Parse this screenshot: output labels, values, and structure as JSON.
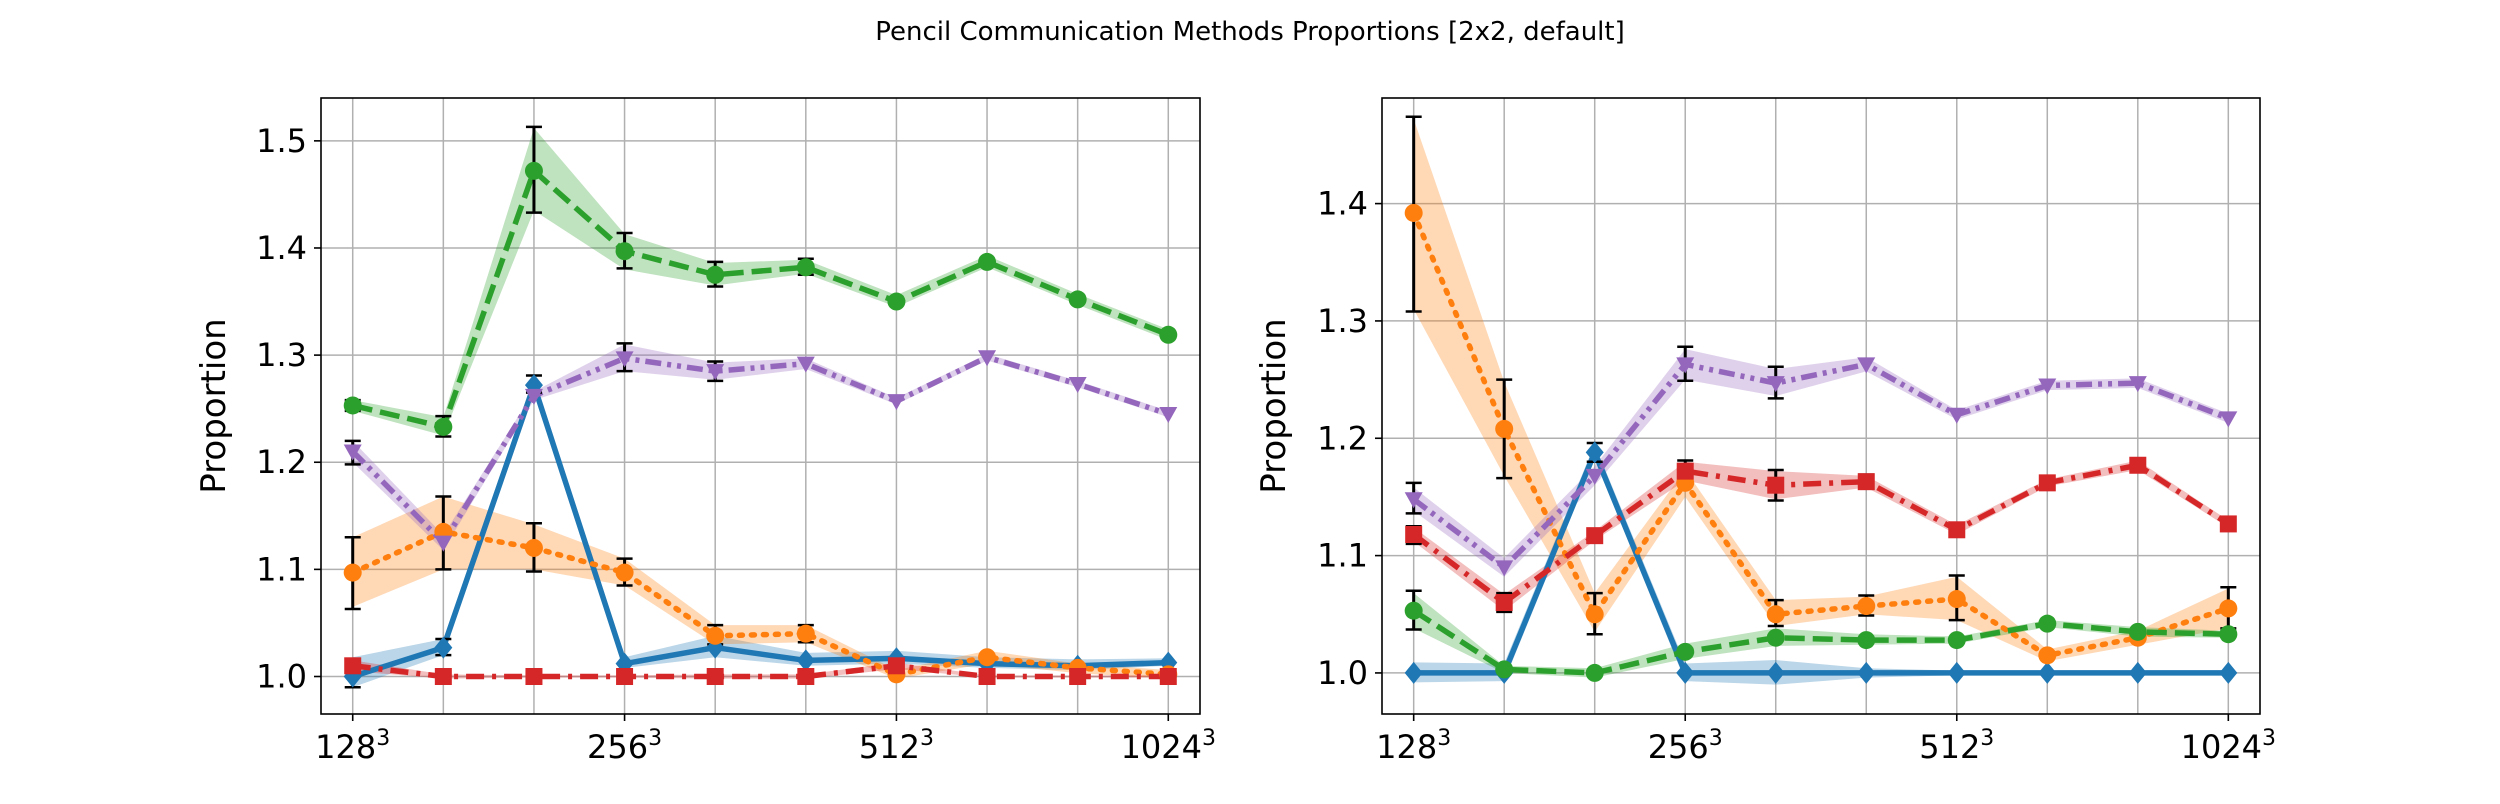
{
  "suptitle": "Pencil Communication Methods Proportions [2x2, default]",
  "chart_data": [
    {
      "type": "line",
      "title": "",
      "xlabel": "",
      "ylabel": "Proportion",
      "x": [
        0,
        1,
        2,
        3,
        4,
        5,
        6,
        7,
        8,
        9
      ],
      "xticks": [
        {
          "x": 0,
          "base": "128",
          "exp": "3"
        },
        {
          "x": 3,
          "base": "256",
          "exp": "3"
        },
        {
          "x": 6,
          "base": "512",
          "exp": "3"
        },
        {
          "x": 9,
          "base": "1024",
          "exp": "3"
        }
      ],
      "xlim": [
        -0.35,
        9.35
      ],
      "ylim": [
        0.965,
        1.54
      ],
      "yticks": [
        1.0,
        1.1,
        1.2,
        1.3,
        1.4,
        1.5
      ],
      "ytick_labels": [
        "1.0",
        "1.1",
        "1.2",
        "1.3",
        "1.4",
        "1.5"
      ],
      "grid": true,
      "series": [
        {
          "color": "#1f77b4",
          "marker": "diamond",
          "dash": "solid",
          "values": [
            1.0,
            1.027,
            1.272,
            1.012,
            1.027,
            1.015,
            1.017,
            1.012,
            1.01,
            1.013
          ],
          "lower": [
            0.99,
            1.02,
            1.265,
            1.008,
            1.018,
            1.01,
            1.012,
            1.008,
            1.006,
            1.01
          ],
          "upper": [
            1.018,
            1.035,
            1.279,
            1.018,
            1.038,
            1.022,
            1.024,
            1.018,
            1.016,
            1.017
          ],
          "errorbars": [
            [
              0.99,
              1.012
            ],
            [
              1.02,
              1.035
            ],
            [
              1.265,
              1.281
            ],
            null,
            null,
            null,
            null,
            null,
            null,
            null
          ]
        },
        {
          "color": "#ff7f0e",
          "marker": "circle",
          "dash": "dotted",
          "values": [
            1.097,
            1.135,
            1.12,
            1.097,
            1.038,
            1.04,
            1.002,
            1.018,
            1.008,
            1.002
          ],
          "lower": [
            1.065,
            1.1,
            1.1,
            1.085,
            1.03,
            1.032,
            0.998,
            1.012,
            1.003,
            0.998
          ],
          "upper": [
            1.13,
            1.168,
            1.142,
            1.11,
            1.048,
            1.048,
            1.006,
            1.024,
            1.012,
            1.006
          ],
          "errorbars": [
            [
              1.063,
              1.13
            ],
            [
              1.1,
              1.168
            ],
            [
              1.098,
              1.143
            ],
            [
              1.085,
              1.11
            ],
            [
              1.03,
              1.048
            ],
            [
              1.032,
              1.048
            ],
            null,
            null,
            null,
            null
          ]
        },
        {
          "color": "#2ca02c",
          "marker": "circle",
          "dash": "dashed",
          "values": [
            1.253,
            1.233,
            1.472,
            1.397,
            1.375,
            1.382,
            1.35,
            1.387,
            1.352,
            1.319
          ],
          "lower": [
            1.248,
            1.225,
            1.435,
            1.38,
            1.365,
            1.376,
            1.345,
            1.382,
            1.347,
            1.314
          ],
          "upper": [
            1.258,
            1.242,
            1.512,
            1.413,
            1.386,
            1.389,
            1.356,
            1.393,
            1.357,
            1.324
          ],
          "errorbars": [
            [
              1.248,
              1.258
            ],
            [
              1.224,
              1.243
            ],
            [
              1.433,
              1.513
            ],
            [
              1.381,
              1.414
            ],
            [
              1.364,
              1.387
            ],
            [
              1.375,
              1.39
            ],
            null,
            null,
            null,
            null
          ]
        },
        {
          "color": "#d62728",
          "marker": "square",
          "dash": "dashdot",
          "values": [
            1.01,
            1.0,
            1.0,
            1.0,
            1.0,
            1.0,
            1.01,
            1.0,
            1.0,
            1.0
          ],
          "lower": [
            1.005,
            0.998,
            0.999,
            0.999,
            0.998,
            0.998,
            1.007,
            0.999,
            0.999,
            0.999
          ],
          "upper": [
            1.015,
            1.002,
            1.001,
            1.001,
            1.002,
            1.002,
            1.013,
            1.001,
            1.001,
            1.001
          ],
          "errorbars": [
            null,
            null,
            null,
            null,
            null,
            null,
            null,
            null,
            null,
            null
          ]
        },
        {
          "color": "#9467bd",
          "marker": "triangle_down",
          "dash": "dashdotdot",
          "values": [
            1.21,
            1.125,
            1.262,
            1.297,
            1.285,
            1.292,
            1.257,
            1.298,
            1.273,
            1.245
          ],
          "lower": [
            1.2,
            1.118,
            1.258,
            1.285,
            1.277,
            1.287,
            1.254,
            1.295,
            1.27,
            1.242
          ],
          "upper": [
            1.22,
            1.132,
            1.266,
            1.31,
            1.293,
            1.297,
            1.26,
            1.301,
            1.276,
            1.248
          ],
          "errorbars": [
            [
              1.198,
              1.22
            ],
            null,
            null,
            [
              1.285,
              1.311
            ],
            [
              1.276,
              1.294
            ],
            null,
            null,
            null,
            null,
            null
          ]
        }
      ]
    },
    {
      "type": "line",
      "title": "",
      "xlabel": "",
      "ylabel": "Proportion",
      "x": [
        0,
        1,
        2,
        3,
        4,
        5,
        6,
        7,
        8,
        9
      ],
      "xticks": [
        {
          "x": 0,
          "base": "128",
          "exp": "3"
        },
        {
          "x": 3,
          "base": "256",
          "exp": "3"
        },
        {
          "x": 6,
          "base": "512",
          "exp": "3"
        },
        {
          "x": 9,
          "base": "1024",
          "exp": "3"
        }
      ],
      "xlim": [
        -0.35,
        9.35
      ],
      "ylim": [
        0.965,
        1.49
      ],
      "yticks": [
        1.0,
        1.1,
        1.2,
        1.3,
        1.4
      ],
      "ytick_labels": [
        "1.0",
        "1.1",
        "1.2",
        "1.3",
        "1.4"
      ],
      "grid": true,
      "series": [
        {
          "color": "#1f77b4",
          "marker": "diamond",
          "dash": "solid",
          "values": [
            1.0,
            1.0,
            1.188,
            1.0,
            1.0,
            1.0,
            1.0,
            1.0,
            1.0,
            1.0
          ],
          "lower": [
            0.992,
            0.993,
            1.182,
            0.993,
            0.99,
            0.996,
            0.998,
            0.998,
            0.998,
            0.998
          ],
          "upper": [
            1.009,
            1.008,
            1.195,
            1.008,
            1.011,
            1.004,
            1.002,
            1.002,
            1.002,
            1.002
          ],
          "errorbars": [
            null,
            null,
            [
              1.18,
              1.196
            ],
            null,
            null,
            null,
            null,
            null,
            null,
            null
          ]
        },
        {
          "color": "#ff7f0e",
          "marker": "circle",
          "dash": "dotted",
          "values": [
            1.392,
            1.208,
            1.05,
            1.162,
            1.05,
            1.057,
            1.063,
            1.015,
            1.03,
            1.055
          ],
          "lower": [
            1.31,
            1.168,
            1.035,
            1.15,
            1.04,
            1.05,
            1.045,
            1.01,
            1.024,
            1.038
          ],
          "upper": [
            1.472,
            1.248,
            1.068,
            1.173,
            1.062,
            1.065,
            1.082,
            1.02,
            1.036,
            1.072
          ],
          "errorbars": [
            [
              1.308,
              1.474
            ],
            [
              1.166,
              1.25
            ],
            [
              1.033,
              1.068
            ],
            null,
            [
              1.04,
              1.062
            ],
            [
              1.049,
              1.066
            ],
            [
              1.045,
              1.083
            ],
            null,
            null,
            [
              1.038,
              1.073
            ]
          ]
        },
        {
          "color": "#2ca02c",
          "marker": "circle",
          "dash": "dashed",
          "values": [
            1.053,
            1.003,
            1.0,
            1.018,
            1.03,
            1.028,
            1.028,
            1.042,
            1.035,
            1.033
          ],
          "lower": [
            1.038,
            1.0,
            0.996,
            1.012,
            1.023,
            1.024,
            1.025,
            1.039,
            1.031,
            1.03
          ],
          "upper": [
            1.068,
            1.006,
            1.004,
            1.025,
            1.038,
            1.033,
            1.031,
            1.045,
            1.039,
            1.036
          ],
          "errorbars": [
            [
              1.037,
              1.07
            ],
            null,
            null,
            null,
            null,
            null,
            null,
            null,
            null,
            null
          ]
        },
        {
          "color": "#d62728",
          "marker": "square",
          "dash": "dashdot",
          "values": [
            1.118,
            1.06,
            1.117,
            1.172,
            1.16,
            1.163,
            1.122,
            1.162,
            1.177,
            1.127
          ],
          "lower": [
            1.112,
            1.053,
            1.113,
            1.164,
            1.148,
            1.158,
            1.118,
            1.159,
            1.173,
            1.124
          ],
          "upper": [
            1.124,
            1.067,
            1.121,
            1.18,
            1.172,
            1.168,
            1.126,
            1.165,
            1.181,
            1.13
          ],
          "errorbars": [
            [
              1.11,
              1.125
            ],
            [
              1.052,
              1.068
            ],
            null,
            [
              1.164,
              1.181
            ],
            [
              1.147,
              1.173
            ],
            [
              1.157,
              1.169
            ],
            null,
            null,
            null,
            null
          ]
        },
        {
          "color": "#9467bd",
          "marker": "triangle_down",
          "dash": "dashdotdot",
          "values": [
            1.148,
            1.09,
            1.168,
            1.263,
            1.247,
            1.263,
            1.22,
            1.245,
            1.247,
            1.217
          ],
          "lower": [
            1.138,
            1.082,
            1.16,
            1.25,
            1.236,
            1.257,
            1.216,
            1.241,
            1.243,
            1.213
          ],
          "upper": [
            1.158,
            1.098,
            1.176,
            1.276,
            1.259,
            1.269,
            1.224,
            1.249,
            1.251,
            1.221
          ],
          "errorbars": [
            [
              1.136,
              1.162
            ],
            null,
            null,
            [
              1.249,
              1.278
            ],
            [
              1.234,
              1.261
            ],
            null,
            null,
            null,
            null,
            null
          ]
        }
      ]
    }
  ]
}
